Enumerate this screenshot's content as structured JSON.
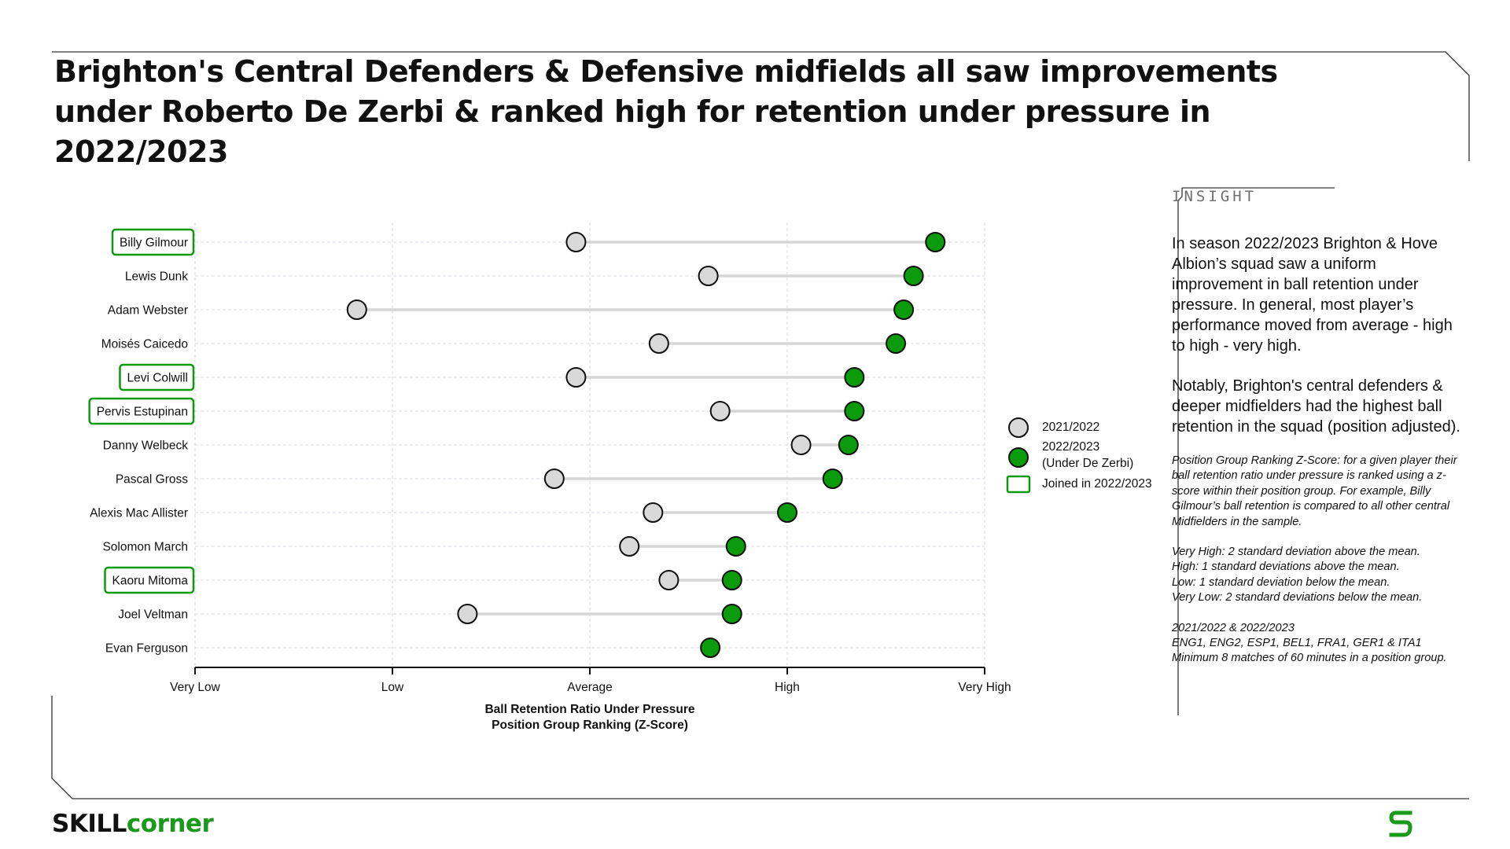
{
  "title": "Brighton's Central Defenders & Defensive midfields all saw improvements under Roberto De Zerbi & ranked high for retention under pressure in 2022/2023",
  "chart_data": {
    "type": "dumbbell",
    "players": [
      "Billy Gilmour",
      "Lewis Dunk",
      "Adam Webster",
      "Moisés Caicedo",
      "Levi Colwill",
      "Pervis Estupinan",
      "Danny Welbeck",
      "Pascal Gross",
      "Alexis Mac Allister",
      "Solomon March",
      "Kaoru Mitoma",
      "Joel Veltman",
      "Evan Ferguson"
    ],
    "joined_2022_2023": [
      true,
      false,
      false,
      false,
      true,
      true,
      false,
      false,
      false,
      false,
      true,
      false,
      false
    ],
    "series": [
      {
        "name": "2021/2022",
        "color": "#d9d9d9",
        "values": [
          -0.07,
          0.6,
          -1.18,
          0.35,
          -0.07,
          0.66,
          1.07,
          -0.18,
          0.32,
          0.2,
          0.4,
          -0.62,
          null
        ]
      },
      {
        "name": "2022/2023 (Under De Zerbi)",
        "color": "#0b9a0b",
        "values": [
          1.75,
          1.64,
          1.59,
          1.55,
          1.34,
          1.34,
          1.31,
          1.23,
          1.0,
          0.74,
          0.72,
          0.72,
          0.61
        ]
      }
    ],
    "x_ticks": [
      {
        "value": -2,
        "label": "Very Low"
      },
      {
        "value": -1,
        "label": "Low"
      },
      {
        "value": 0,
        "label": "Average"
      },
      {
        "value": 1,
        "label": "High"
      },
      {
        "value": 2,
        "label": "Very High"
      }
    ],
    "xlim": [
      -2,
      2
    ],
    "xlabel_line1": "Ball Retention Ratio Under Pressure",
    "xlabel_line2": "Position Group Ranking (Z-Score)",
    "legend": {
      "item1": "2021/2022",
      "item2_line1": "2022/2023",
      "item2_line2": "(Under De Zerbi)",
      "item3": "Joined in 2022/2023"
    }
  },
  "insight": {
    "heading": "INSIGHT",
    "para1": "In season 2022/2023 Brighton & Hove Albion’s squad saw a uniform improvement in ball retention under pressure. In general, most player’s performance moved from average - high to high - very high.",
    "para2": "Notably, Brighton's central defenders & deeper midfielders had the highest ball retention in the squad (position adjusted).",
    "note1": "Position Group Ranking Z-Score: for a given player their ball retention ratio under pressure is ranked using a z-score within their position group. For example, Billy Gilmour’s ball retention is compared to all other central Midfielders in the sample.",
    "note2_l1": "Very High: 2 standard deviation above the mean.",
    "note2_l2": "High: 1 standard deviations above the mean.",
    "note2_l3": "Low: 1 standard deviation below the mean.",
    "note2_l4": "Very Low: 2 standard deviations below the mean.",
    "note3_l1": "2021/2022 & 2022/2023",
    "note3_l2": "ENG1, ENG2, ESP1, BEL1, FRA1, GER1 & ITA1",
    "note3_l3": "Minimum 8 matches of 60 minutes in a position group."
  },
  "brand": {
    "part1": "SKILL",
    "part2": "corner"
  },
  "colors": {
    "accent": "#0b9a0b",
    "prev": "#d9d9d9",
    "frame": "#333333"
  }
}
